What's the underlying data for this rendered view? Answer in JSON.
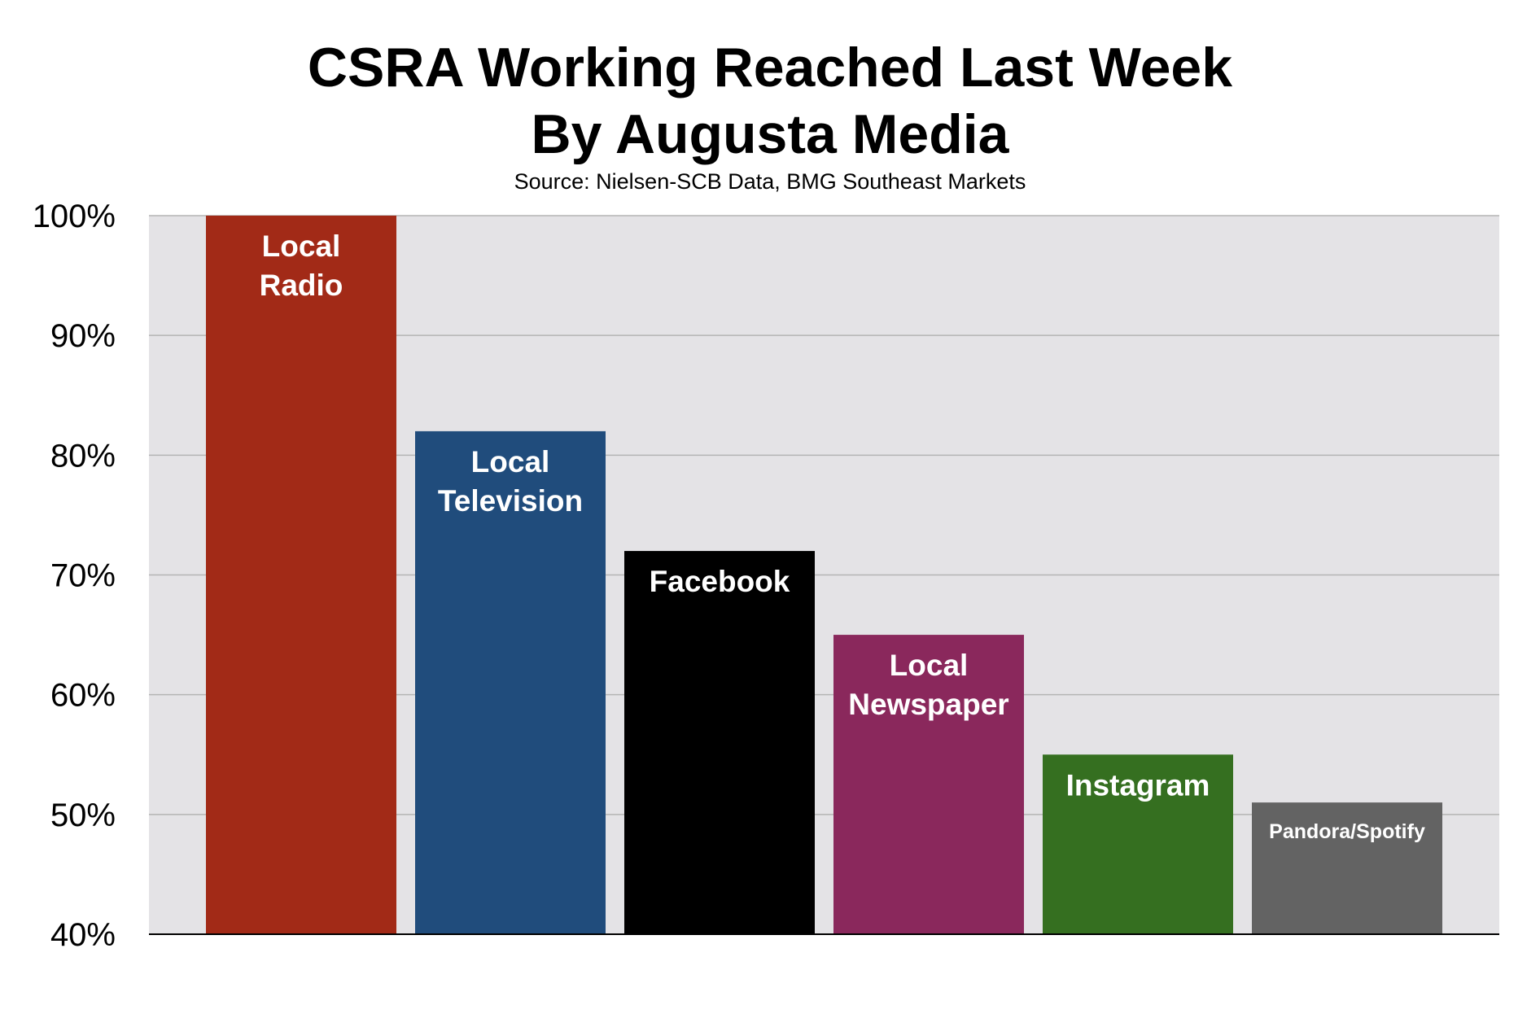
{
  "chart_data": {
    "type": "bar",
    "title_lines": [
      "CSRA Working Reached Last Week",
      "By Augusta Media"
    ],
    "subtitle": "Source: Nielsen-SCB Data, BMG Southeast Markets",
    "ylim": [
      40,
      100
    ],
    "yticks": [
      "40%",
      "50%",
      "60%",
      "70%",
      "80%",
      "90%",
      "100%"
    ],
    "ytick_values": [
      40,
      50,
      60,
      70,
      80,
      90,
      100
    ],
    "grid": true,
    "categories": [
      "Local Radio",
      "Local Television",
      "Facebook",
      "Local Newspaper",
      "Instagram",
      "Pandora/Spotify"
    ],
    "bar_label_lines": [
      [
        "Local",
        "Radio"
      ],
      [
        "Local",
        "Television"
      ],
      [
        "Facebook"
      ],
      [
        "Local",
        "Newspaper"
      ],
      [
        "Instagram"
      ],
      [
        "Pandora/Spotify"
      ]
    ],
    "values": [
      100,
      82,
      72,
      65,
      55,
      51
    ],
    "colors": [
      "#a22a17",
      "#204c7c",
      "#000000",
      "#8a285c",
      "#356f20",
      "#636363"
    ],
    "plot_background": "#e4e3e6",
    "gridline_color": "#b4b4b4"
  }
}
